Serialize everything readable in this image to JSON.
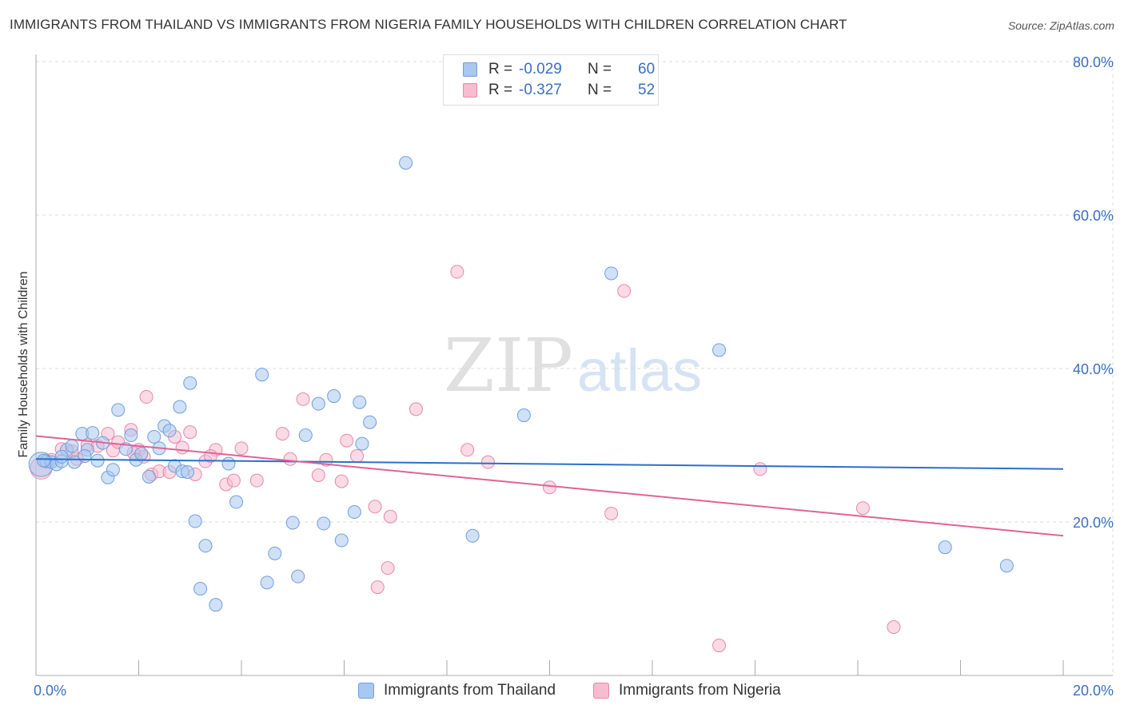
{
  "title": "IMMIGRANTS FROM THAILAND VS IMMIGRANTS FROM NIGERIA FAMILY HOUSEHOLDS WITH CHILDREN CORRELATION CHART",
  "source": "Source: ZipAtlas.com",
  "watermark": {
    "zip": "ZIP",
    "atlas": "atlas"
  },
  "colors": {
    "thailand_fill": "#a9c7ef",
    "thailand_stroke": "#6e9fdb",
    "thailand_line": "#2a6fcc",
    "nigeria_fill": "#f6bcd0",
    "nigeria_stroke": "#e888a8",
    "nigeria_line": "#e06393",
    "axis_label": "#3a6fc4",
    "grid": "#dddddd"
  },
  "stats": {
    "thailand": {
      "r_label": "R =",
      "r_value": "-0.029",
      "n_label": "N =",
      "n_value": "60"
    },
    "nigeria": {
      "r_label": "R =",
      "r_value": "-0.327",
      "n_label": "N =",
      "n_value": "52"
    }
  },
  "legend": {
    "thailand": "Immigrants from Thailand",
    "nigeria": "Immigrants from Nigeria"
  },
  "chart_data": {
    "type": "scatter",
    "title": "IMMIGRANTS FROM THAILAND VS IMMIGRANTS FROM NIGERIA FAMILY HOUSEHOLDS WITH CHILDREN CORRELATION CHART",
    "xlabel": "",
    "ylabel": "Family Households with Children",
    "xlim": [
      0,
      20
    ],
    "ylim": [
      0,
      80
    ],
    "x_tick_labels": [
      {
        "value": 0,
        "label": "0.0%"
      },
      {
        "value": 20,
        "label": "20.0%"
      }
    ],
    "y_tick_labels": [
      {
        "value": 20,
        "label": "20.0%"
      },
      {
        "value": 40,
        "label": "40.0%"
      },
      {
        "value": 60,
        "label": "60.0%"
      },
      {
        "value": 80,
        "label": "80.0%"
      }
    ],
    "series": [
      {
        "name": "Immigrants from Thailand",
        "trend": {
          "x": [
            0,
            20
          ],
          "y": [
            28.2,
            26.9
          ]
        },
        "points": [
          [
            0.1,
            27.5,
            1.9
          ],
          [
            0.2,
            27.9,
            1
          ],
          [
            0.3,
            27.8,
            1
          ],
          [
            0.4,
            27.5,
            1
          ],
          [
            0.5,
            27.9,
            1
          ],
          [
            0.6,
            29.4,
            1
          ],
          [
            0.7,
            29.9,
            1
          ],
          [
            0.75,
            27.8,
            1
          ],
          [
            0.9,
            31.5,
            1
          ],
          [
            1.0,
            29.4,
            1
          ],
          [
            1.2,
            28.0,
            1
          ],
          [
            1.3,
            30.3,
            1
          ],
          [
            1.4,
            25.8,
            1
          ],
          [
            1.5,
            26.8,
            1
          ],
          [
            1.6,
            34.6,
            1
          ],
          [
            1.75,
            29.5,
            1
          ],
          [
            1.85,
            31.3,
            1
          ],
          [
            1.95,
            28.1,
            1
          ],
          [
            2.05,
            28.9,
            1
          ],
          [
            2.2,
            25.9,
            1
          ],
          [
            2.3,
            31.1,
            1
          ],
          [
            2.4,
            29.6,
            1
          ],
          [
            2.5,
            32.5,
            1
          ],
          [
            2.6,
            31.9,
            1
          ],
          [
            2.7,
            27.3,
            1
          ],
          [
            2.8,
            35.0,
            1
          ],
          [
            2.85,
            26.6,
            1
          ],
          [
            3.0,
            38.1,
            1
          ],
          [
            3.1,
            20.1,
            1
          ],
          [
            3.2,
            11.3,
            1
          ],
          [
            3.3,
            16.9,
            1
          ],
          [
            3.5,
            9.2,
            1
          ],
          [
            3.75,
            27.6,
            1
          ],
          [
            3.9,
            22.6,
            1
          ],
          [
            4.4,
            39.2,
            1
          ],
          [
            4.5,
            12.1,
            1
          ],
          [
            4.65,
            15.9,
            1
          ],
          [
            5.0,
            19.9,
            1
          ],
          [
            5.1,
            12.9,
            1
          ],
          [
            5.25,
            31.3,
            1
          ],
          [
            5.5,
            35.4,
            1
          ],
          [
            5.6,
            19.8,
            1
          ],
          [
            5.8,
            36.4,
            1
          ],
          [
            5.95,
            17.6,
            1
          ],
          [
            6.2,
            21.3,
            1
          ],
          [
            6.3,
            35.6,
            1
          ],
          [
            6.5,
            33.0,
            1
          ],
          [
            6.35,
            30.2,
            1
          ],
          [
            7.2,
            66.8,
            1
          ],
          [
            8.5,
            18.2,
            1
          ],
          [
            9.5,
            33.9,
            1
          ],
          [
            11.2,
            52.4,
            1
          ],
          [
            13.3,
            42.4,
            1
          ],
          [
            17.7,
            16.7,
            1
          ],
          [
            18.9,
            14.3,
            1
          ],
          [
            0.15,
            28.0,
            1
          ],
          [
            0.5,
            28.5,
            1
          ],
          [
            1.1,
            31.6,
            1
          ],
          [
            2.95,
            26.5,
            1
          ],
          [
            0.95,
            28.6,
            1
          ]
        ]
      },
      {
        "name": "Immigrants from Nigeria",
        "trend": {
          "x": [
            0,
            20
          ],
          "y": [
            31.2,
            18.2
          ]
        },
        "points": [
          [
            0.1,
            27.0,
            1.7
          ],
          [
            0.3,
            28.1,
            1
          ],
          [
            0.5,
            29.5,
            1
          ],
          [
            0.8,
            28.2,
            1
          ],
          [
            1.0,
            30.0,
            1
          ],
          [
            1.2,
            29.9,
            1
          ],
          [
            1.4,
            31.5,
            1
          ],
          [
            1.5,
            29.3,
            1
          ],
          [
            1.6,
            30.4,
            1
          ],
          [
            1.85,
            32.0,
            1
          ],
          [
            2.0,
            29.4,
            1
          ],
          [
            2.1,
            28.5,
            1
          ],
          [
            2.15,
            36.3,
            1
          ],
          [
            2.25,
            26.2,
            1
          ],
          [
            2.4,
            26.6,
            1
          ],
          [
            2.6,
            26.5,
            1
          ],
          [
            2.7,
            31.1,
            1
          ],
          [
            2.85,
            29.7,
            1
          ],
          [
            3.0,
            31.7,
            1
          ],
          [
            3.1,
            26.2,
            1
          ],
          [
            3.3,
            27.9,
            1
          ],
          [
            3.5,
            29.4,
            1
          ],
          [
            3.7,
            24.9,
            1
          ],
          [
            3.85,
            25.4,
            1
          ],
          [
            4.0,
            29.6,
            1
          ],
          [
            4.3,
            25.4,
            1
          ],
          [
            4.8,
            31.5,
            1
          ],
          [
            4.95,
            28.2,
            1
          ],
          [
            5.2,
            36.0,
            1
          ],
          [
            5.5,
            26.1,
            1
          ],
          [
            5.65,
            28.1,
            1
          ],
          [
            5.95,
            25.3,
            1
          ],
          [
            6.05,
            30.6,
            1
          ],
          [
            6.25,
            28.6,
            1
          ],
          [
            6.6,
            22.0,
            1
          ],
          [
            6.85,
            14.0,
            1
          ],
          [
            6.9,
            20.7,
            1
          ],
          [
            6.65,
            11.5,
            1
          ],
          [
            7.4,
            34.7,
            1
          ],
          [
            8.2,
            52.6,
            1
          ],
          [
            8.4,
            29.4,
            1
          ],
          [
            8.8,
            27.8,
            1
          ],
          [
            10.0,
            24.5,
            1
          ],
          [
            11.2,
            21.1,
            1
          ],
          [
            11.45,
            50.1,
            1
          ],
          [
            13.3,
            3.9,
            1
          ],
          [
            14.1,
            26.9,
            1
          ],
          [
            16.1,
            21.8,
            1
          ],
          [
            16.7,
            6.3,
            1
          ],
          [
            0.7,
            29.2,
            1
          ],
          [
            1.9,
            29.0,
            1
          ],
          [
            3.4,
            28.6,
            1
          ]
        ]
      }
    ]
  }
}
